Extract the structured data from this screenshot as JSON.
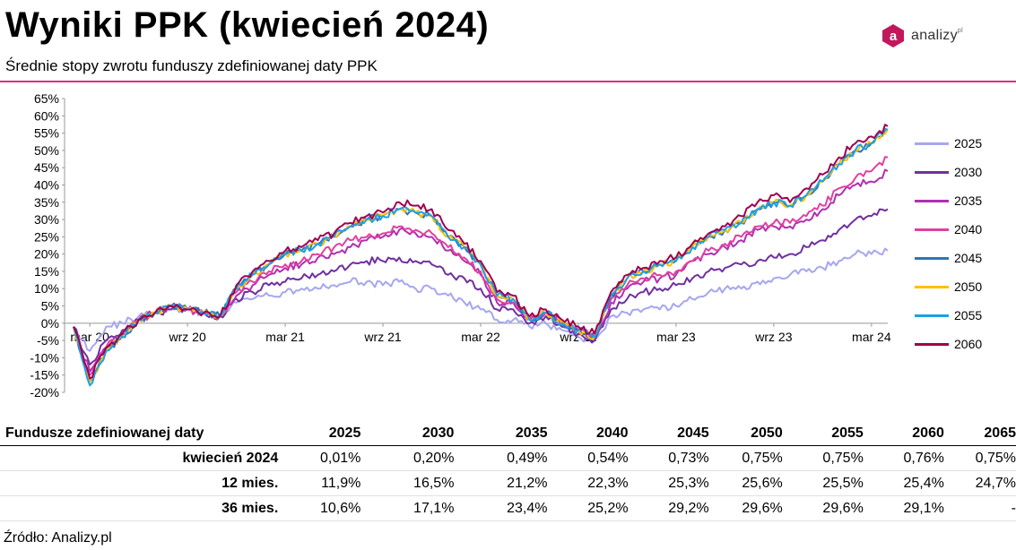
{
  "header": {
    "title": "Wyniki PPK (kwiecień 2024)",
    "subtitle": "Średnie stopy zwrotu funduszy zdefiniowanej daty PPK",
    "logo_text": "analizy",
    "logo_sup": "pl"
  },
  "colors": {
    "accent_rule": "#d8307e",
    "logo": "#c2185b"
  },
  "chart_data": {
    "type": "line",
    "title": "",
    "xlabel": "",
    "ylabel": "",
    "ylim": [
      -20,
      65
    ],
    "y_ticks": [
      "65%",
      "60%",
      "55%",
      "50%",
      "45%",
      "40%",
      "35%",
      "30%",
      "25%",
      "20%",
      "15%",
      "10%",
      "5%",
      "0%",
      "-5%",
      "-10%",
      "-15%",
      "-20%"
    ],
    "x_ticks": [
      "mar 20",
      "wrz 20",
      "mar 21",
      "wrz 21",
      "mar 22",
      "wrz 22",
      "mar 23",
      "wrz 23",
      "mar 24"
    ],
    "grid": false,
    "legend": "right",
    "x_dates": [
      "2020-02",
      "2020-03",
      "2020-04",
      "2020-05",
      "2020-06",
      "2020-07",
      "2020-08",
      "2020-09",
      "2020-10",
      "2020-11",
      "2020-12",
      "2021-01",
      "2021-02",
      "2021-03",
      "2021-04",
      "2021-05",
      "2021-06",
      "2021-07",
      "2021-08",
      "2021-09",
      "2021-10",
      "2021-11",
      "2021-12",
      "2022-01",
      "2022-02",
      "2022-03",
      "2022-04",
      "2022-05",
      "2022-06",
      "2022-07",
      "2022-08",
      "2022-09",
      "2022-10",
      "2022-11",
      "2022-12",
      "2023-01",
      "2023-02",
      "2023-03",
      "2023-04",
      "2023-05",
      "2023-06",
      "2023-07",
      "2023-08",
      "2023-09",
      "2023-10",
      "2023-11",
      "2023-12",
      "2024-01",
      "2024-02",
      "2024-03",
      "2024-04"
    ],
    "series": [
      {
        "name": "2025",
        "color": "#a6a6f0",
        "values": [
          -1,
          -8,
          -1,
          0,
          2,
          3,
          4,
          4,
          3,
          2,
          6,
          7,
          8,
          9,
          10,
          10,
          11,
          12,
          12,
          11,
          12,
          10,
          10,
          8,
          6,
          4,
          1,
          1,
          -1,
          0,
          -2,
          -4,
          -5,
          2,
          3,
          4,
          4,
          5,
          7,
          9,
          10,
          10,
          12,
          13,
          14,
          15,
          16,
          18,
          20,
          20,
          21
        ]
      },
      {
        "name": "2030",
        "color": "#7030a0",
        "values": [
          -1,
          -12,
          -5,
          -2,
          1,
          3,
          4,
          4,
          3,
          2,
          7,
          9,
          11,
          12,
          13,
          14,
          15,
          17,
          18,
          18,
          19,
          18,
          17,
          14,
          13,
          10,
          4,
          4,
          0,
          2,
          -1,
          -3,
          -5,
          4,
          7,
          9,
          10,
          11,
          13,
          15,
          16,
          17,
          18,
          19,
          20,
          22,
          24,
          27,
          30,
          31,
          33
        ]
      },
      {
        "name": "2035",
        "color": "#b030b0",
        "values": [
          -1,
          -14,
          -7,
          -3,
          1,
          3,
          5,
          4,
          3,
          2,
          8,
          11,
          14,
          16,
          17,
          19,
          20,
          22,
          24,
          25,
          27,
          26,
          25,
          21,
          18,
          14,
          6,
          6,
          1,
          3,
          0,
          -2,
          -4,
          6,
          10,
          12,
          13,
          14,
          18,
          20,
          22,
          24,
          27,
          28,
          28,
          30,
          33,
          37,
          40,
          41,
          44
        ]
      },
      {
        "name": "2040",
        "color": "#e040a0",
        "values": [
          -1,
          -15,
          -7,
          -3,
          1,
          3,
          5,
          4,
          3,
          2,
          9,
          12,
          15,
          17,
          18,
          20,
          22,
          24,
          25,
          26,
          28,
          27,
          26,
          22,
          19,
          15,
          7,
          6,
          1,
          3,
          0,
          -2,
          -4,
          7,
          11,
          13,
          14,
          15,
          18,
          21,
          23,
          25,
          28,
          29,
          29,
          31,
          34,
          39,
          42,
          44,
          48
        ]
      },
      {
        "name": "2045",
        "color": "#2e75b6",
        "values": [
          -1,
          -17,
          -8,
          -4,
          1,
          3,
          5,
          4,
          3,
          2,
          10,
          14,
          17,
          20,
          21,
          23,
          25,
          28,
          30,
          31,
          33,
          32,
          31,
          25,
          22,
          17,
          8,
          7,
          1,
          3,
          0,
          -2,
          -4,
          8,
          13,
          15,
          17,
          18,
          22,
          25,
          27,
          29,
          33,
          35,
          34,
          37,
          41,
          46,
          50,
          52,
          56
        ]
      },
      {
        "name": "2050",
        "color": "#ffc000",
        "values": [
          -1,
          -17,
          -8,
          -4,
          1,
          3,
          5,
          4,
          3,
          2,
          10,
          14,
          17,
          20,
          21,
          23,
          25,
          28,
          30,
          31,
          33,
          32,
          31,
          25,
          22,
          17,
          8,
          7,
          1,
          3,
          0,
          -2,
          -4,
          8,
          13,
          15,
          17,
          18,
          22,
          25,
          27,
          29,
          33,
          35,
          34,
          37,
          41,
          46,
          50,
          52,
          56
        ]
      },
      {
        "name": "2055",
        "color": "#1ea0e6",
        "values": [
          -1,
          -18,
          -8,
          -4,
          1,
          3,
          5,
          4,
          3,
          2,
          10,
          14,
          17,
          20,
          21,
          23,
          25,
          28,
          30,
          31,
          33,
          32,
          31,
          25,
          22,
          17,
          8,
          7,
          1,
          3,
          0,
          -2,
          -4,
          8,
          13,
          15,
          17,
          18,
          22,
          25,
          27,
          29,
          33,
          35,
          34,
          37,
          41,
          46,
          50,
          52,
          56
        ]
      },
      {
        "name": "2060",
        "color": "#a00050",
        "values": [
          -1,
          -16,
          -7,
          -3,
          1,
          3,
          5,
          4,
          3,
          2,
          11,
          15,
          18,
          21,
          22,
          24,
          26,
          29,
          31,
          32,
          35,
          34,
          33,
          27,
          23,
          18,
          9,
          8,
          2,
          4,
          1,
          -1,
          -3,
          9,
          14,
          16,
          18,
          19,
          23,
          26,
          28,
          31,
          35,
          37,
          35,
          39,
          43,
          48,
          52,
          54,
          57
        ]
      }
    ]
  },
  "table": {
    "header_label": "Fundusze zdefiniowanej daty",
    "columns": [
      "2025",
      "2030",
      "2035",
      "2040",
      "2045",
      "2050",
      "2055",
      "2060",
      "2065"
    ],
    "rows": [
      {
        "label": "kwiecień 2024",
        "values": [
          "0,01%",
          "0,20%",
          "0,49%",
          "0,54%",
          "0,73%",
          "0,75%",
          "0,75%",
          "0,76%",
          "0,75%"
        ]
      },
      {
        "label": "12 mies.",
        "values": [
          "11,9%",
          "16,5%",
          "21,2%",
          "22,3%",
          "25,3%",
          "25,6%",
          "25,5%",
          "25,4%",
          "24,7%"
        ]
      },
      {
        "label": "36 mies.",
        "values": [
          "10,6%",
          "17,1%",
          "23,4%",
          "25,2%",
          "29,2%",
          "29,6%",
          "29,6%",
          "29,1%",
          "-"
        ]
      }
    ]
  },
  "source": "Źródło: Analizy.pl"
}
